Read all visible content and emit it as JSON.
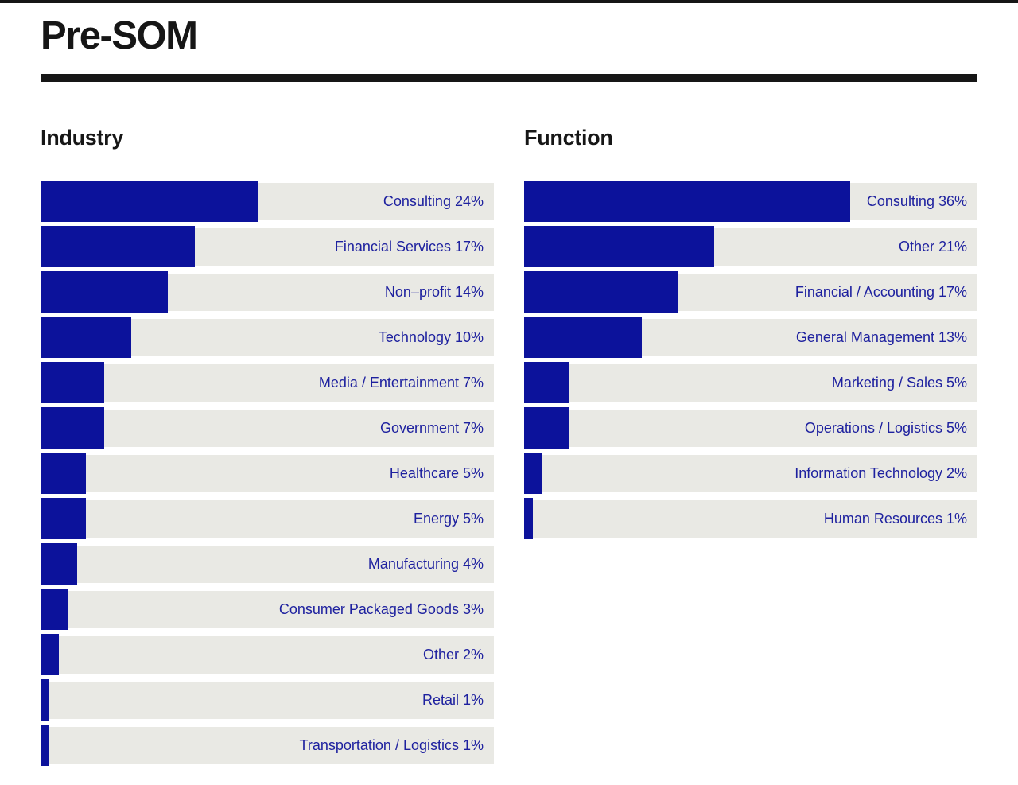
{
  "title": "Pre-SOM",
  "colors": {
    "background": "#ffffff",
    "ink": "#161616",
    "bar": "#0c129b",
    "track": "#e9e9e4",
    "label": "#1e219f"
  },
  "chart_data": [
    {
      "type": "bar",
      "orientation": "horizontal",
      "title": "Industry",
      "unit": "%",
      "xlim": [
        0,
        50
      ],
      "grid": false,
      "legend": "none",
      "label_position": "inside-right",
      "categories": [
        "Consulting",
        "Financial Services",
        "Non–profit",
        "Technology",
        "Media / Entertainment",
        "Government",
        "Healthcare",
        "Energy",
        "Manufacturing",
        "Consumer Packaged Goods",
        "Other",
        "Retail",
        "Transportation / Logistics"
      ],
      "values": [
        24,
        17,
        14,
        10,
        7,
        7,
        5,
        5,
        4,
        3,
        2,
        1,
        1
      ]
    },
    {
      "type": "bar",
      "orientation": "horizontal",
      "title": "Function",
      "unit": "%",
      "xlim": [
        0,
        50
      ],
      "grid": false,
      "legend": "none",
      "label_position": "inside-right",
      "categories": [
        "Consulting",
        "Other",
        "Financial / Accounting",
        "General Management",
        "Marketing / Sales",
        "Operations / Logistics",
        "Information Technology",
        "Human Resources"
      ],
      "values": [
        36,
        21,
        17,
        13,
        5,
        5,
        2,
        1
      ]
    }
  ]
}
